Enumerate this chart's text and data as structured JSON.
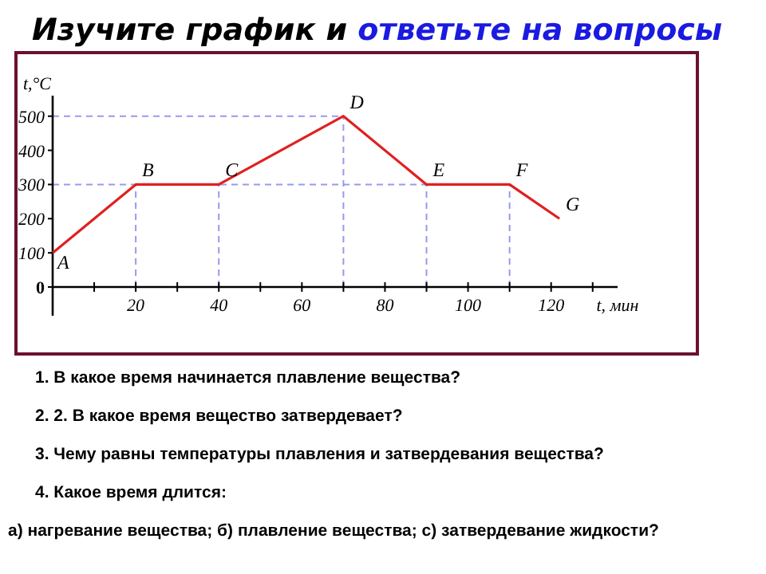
{
  "chart_data": {
    "type": "line",
    "title": "Изучите график и ответьте на вопросы",
    "xlabel": "t, мин",
    "ylabel": "t,°C",
    "x": [
      0,
      20,
      40,
      70,
      90,
      110,
      122
    ],
    "series": [
      {
        "color": "#e02020",
        "values": [
          100,
          300,
          300,
          500,
          300,
          300,
          200
        ]
      }
    ],
    "xlim": [
      0,
      136
    ],
    "ylim": [
      0,
      560
    ],
    "xticks": [
      {
        "value": 0,
        "label": null
      },
      {
        "value": 10,
        "label": null
      },
      20,
      {
        "value": 30,
        "label": null
      },
      40,
      {
        "value": 50,
        "label": null
      },
      60,
      {
        "value": 70,
        "label": null
      },
      80,
      {
        "value": 90,
        "label": null
      },
      100,
      {
        "value": 110,
        "label": null
      },
      120,
      {
        "value": 130,
        "label": null
      }
    ],
    "yticks": [
      0,
      100,
      200,
      300,
      400,
      500
    ],
    "ref_lines": [
      {
        "axis": "y",
        "value": 500,
        "color": "#9999ee",
        "line_style": "dashed"
      },
      {
        "axis": "y",
        "value": 300,
        "color": "#9999ee",
        "line_style": "dashed"
      },
      {
        "axis": "x",
        "value": 20,
        "color": "#9999ee",
        "line_style": "dashed"
      },
      {
        "axis": "x",
        "value": 40,
        "color": "#9999ee",
        "line_style": "dashed"
      },
      {
        "axis": "x",
        "value": 70,
        "color": "#9999ee",
        "line_style": "dashed"
      },
      {
        "axis": "x",
        "value": 90,
        "color": "#9999ee",
        "line_style": "dashed"
      },
      {
        "axis": "x",
        "value": 110,
        "color": "#9999ee",
        "line_style": "dashed"
      }
    ],
    "grid": false,
    "marker": "none",
    "line_style": "solid",
    "annotations": [
      {
        "text": "A",
        "x": 0,
        "y": 100
      },
      {
        "text": "B",
        "x": 20,
        "y": 300
      },
      {
        "text": "C",
        "x": 40,
        "y": 300
      },
      {
        "text": "D",
        "x": 70,
        "y": 500
      },
      {
        "text": "E",
        "x": 90,
        "y": 300
      },
      {
        "text": "F",
        "x": 110,
        "y": 300
      },
      {
        "text": "G",
        "x": 122,
        "y": 200
      },
      "1.  В какое время начинается  плавление вещества?",
      "2.  2. В какое время вещество затвердевает?",
      "3.  Чему равны температуры плавления и затвердевания вещества?",
      "4.  Какое время длится:",
      "а) нагревание вещества;  б) плавление вещества;  с) затвердевание жидкости?"
    ]
  }
}
